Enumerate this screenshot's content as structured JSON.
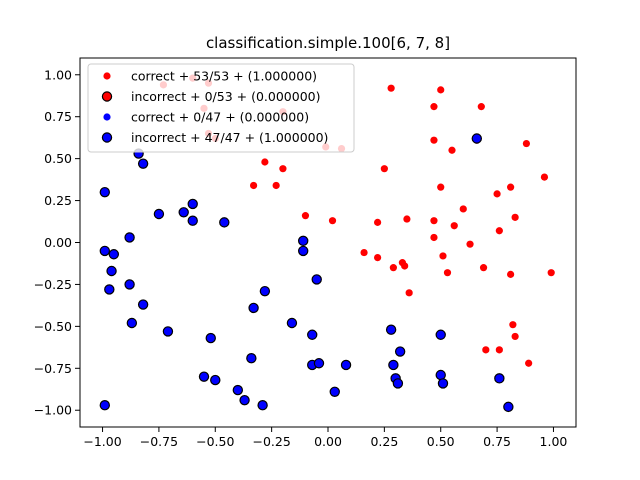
{
  "chart_data": {
    "type": "scatter",
    "title": "classification.simple.100[6, 7, 8]",
    "xlabel": "",
    "ylabel": "",
    "xlim": [
      -1.1,
      1.1
    ],
    "ylim": [
      -1.1,
      1.1
    ],
    "xticks": [
      -1.0,
      -0.75,
      -0.5,
      -0.25,
      0.0,
      0.25,
      0.5,
      0.75,
      1.0
    ],
    "xtick_labels": [
      "−1.00",
      "−0.75",
      "−0.50",
      "−0.25",
      "0.00",
      "0.25",
      "0.50",
      "0.75",
      "1.00"
    ],
    "yticks": [
      1.0,
      0.75,
      0.5,
      0.25,
      0.0,
      -0.25,
      -0.5,
      -0.75,
      -1.0
    ],
    "ytick_labels": [
      "1.00",
      "0.75",
      "0.50",
      "0.25",
      "0.00",
      "−0.25",
      "−0.50",
      "−0.75",
      "−1.00"
    ],
    "grid": false,
    "legend_position": "top-left",
    "series": [
      {
        "name": "correct + 53/53 + (1.000000)",
        "color": "#ff0000",
        "edge": "none",
        "points": [
          [
            -0.73,
            0.94
          ],
          [
            -0.6,
            0.98
          ],
          [
            -0.53,
            0.95
          ],
          [
            -0.55,
            0.8
          ],
          [
            -0.53,
            0.65
          ],
          [
            -0.5,
            0.62
          ],
          [
            -0.2,
            0.78
          ],
          [
            -0.2,
            0.44
          ],
          [
            -0.33,
            0.34
          ],
          [
            -0.28,
            0.48
          ],
          [
            -0.23,
            0.34
          ],
          [
            -0.1,
            0.16
          ],
          [
            -0.01,
            0.57
          ],
          [
            0.06,
            0.56
          ],
          [
            0.02,
            0.13
          ],
          [
            0.16,
            -0.06
          ],
          [
            0.22,
            -0.09
          ],
          [
            0.22,
            0.12
          ],
          [
            0.25,
            0.44
          ],
          [
            0.28,
            0.92
          ],
          [
            0.29,
            -0.15
          ],
          [
            0.33,
            -0.12
          ],
          [
            0.34,
            -0.14
          ],
          [
            0.35,
            0.14
          ],
          [
            0.36,
            -0.3
          ],
          [
            0.47,
            0.81
          ],
          [
            0.47,
            0.61
          ],
          [
            0.47,
            0.13
          ],
          [
            0.47,
            0.03
          ],
          [
            0.5,
            0.91
          ],
          [
            0.5,
            0.33
          ],
          [
            0.51,
            -0.08
          ],
          [
            0.53,
            -0.18
          ],
          [
            0.55,
            0.55
          ],
          [
            0.56,
            0.1
          ],
          [
            0.6,
            0.2
          ],
          [
            0.63,
            -0.01
          ],
          [
            0.66,
            0.61
          ],
          [
            0.68,
            0.81
          ],
          [
            0.69,
            -0.15
          ],
          [
            0.7,
            -0.64
          ],
          [
            0.75,
            0.29
          ],
          [
            0.76,
            0.07
          ],
          [
            0.76,
            -0.64
          ],
          [
            0.81,
            0.33
          ],
          [
            0.81,
            -0.19
          ],
          [
            0.82,
            -0.49
          ],
          [
            0.83,
            0.15
          ],
          [
            0.83,
            -0.56
          ],
          [
            0.88,
            0.59
          ],
          [
            0.89,
            -0.72
          ],
          [
            0.96,
            0.39
          ],
          [
            0.99,
            -0.18
          ]
        ]
      },
      {
        "name": "incorrect + 0/53 + (0.000000)",
        "color": "#ff0000",
        "edge": "#000000",
        "points": []
      },
      {
        "name": "correct + 0/47 + (0.000000)",
        "color": "#0000ff",
        "edge": "none",
        "points": []
      },
      {
        "name": "incorrect + 47/47 + (1.000000)",
        "color": "#0000ff",
        "edge": "#000000",
        "points": [
          [
            -0.99,
            0.3
          ],
          [
            -0.99,
            -0.05
          ],
          [
            -0.99,
            -0.97
          ],
          [
            -0.95,
            -0.07
          ],
          [
            -0.96,
            -0.17
          ],
          [
            -0.97,
            -0.28
          ],
          [
            -0.88,
            0.03
          ],
          [
            -0.88,
            -0.25
          ],
          [
            -0.87,
            -0.48
          ],
          [
            -0.84,
            0.53
          ],
          [
            -0.82,
            0.47
          ],
          [
            -0.82,
            -0.37
          ],
          [
            -0.75,
            0.17
          ],
          [
            -0.71,
            -0.53
          ],
          [
            -0.64,
            0.18
          ],
          [
            -0.6,
            0.23
          ],
          [
            -0.6,
            0.13
          ],
          [
            -0.55,
            -0.8
          ],
          [
            -0.52,
            -0.57
          ],
          [
            -0.5,
            -0.82
          ],
          [
            -0.46,
            0.12
          ],
          [
            -0.4,
            -0.88
          ],
          [
            -0.37,
            -0.94
          ],
          [
            -0.34,
            -0.69
          ],
          [
            -0.33,
            -0.39
          ],
          [
            -0.28,
            -0.29
          ],
          [
            -0.29,
            -0.97
          ],
          [
            -0.16,
            -0.48
          ],
          [
            -0.11,
            0.01
          ],
          [
            -0.11,
            -0.05
          ],
          [
            -0.07,
            -0.55
          ],
          [
            -0.07,
            -0.73
          ],
          [
            -0.04,
            -0.72
          ],
          [
            -0.05,
            -0.22
          ],
          [
            0.03,
            -0.89
          ],
          [
            0.08,
            -0.73
          ],
          [
            0.28,
            -0.52
          ],
          [
            0.29,
            -0.73
          ],
          [
            0.3,
            -0.81
          ],
          [
            0.31,
            -0.84
          ],
          [
            0.32,
            -0.65
          ],
          [
            0.5,
            -0.55
          ],
          [
            0.5,
            -0.79
          ],
          [
            0.51,
            -0.84
          ],
          [
            0.76,
            -0.81
          ],
          [
            0.8,
            -0.98
          ],
          [
            0.66,
            0.62
          ]
        ]
      }
    ]
  }
}
